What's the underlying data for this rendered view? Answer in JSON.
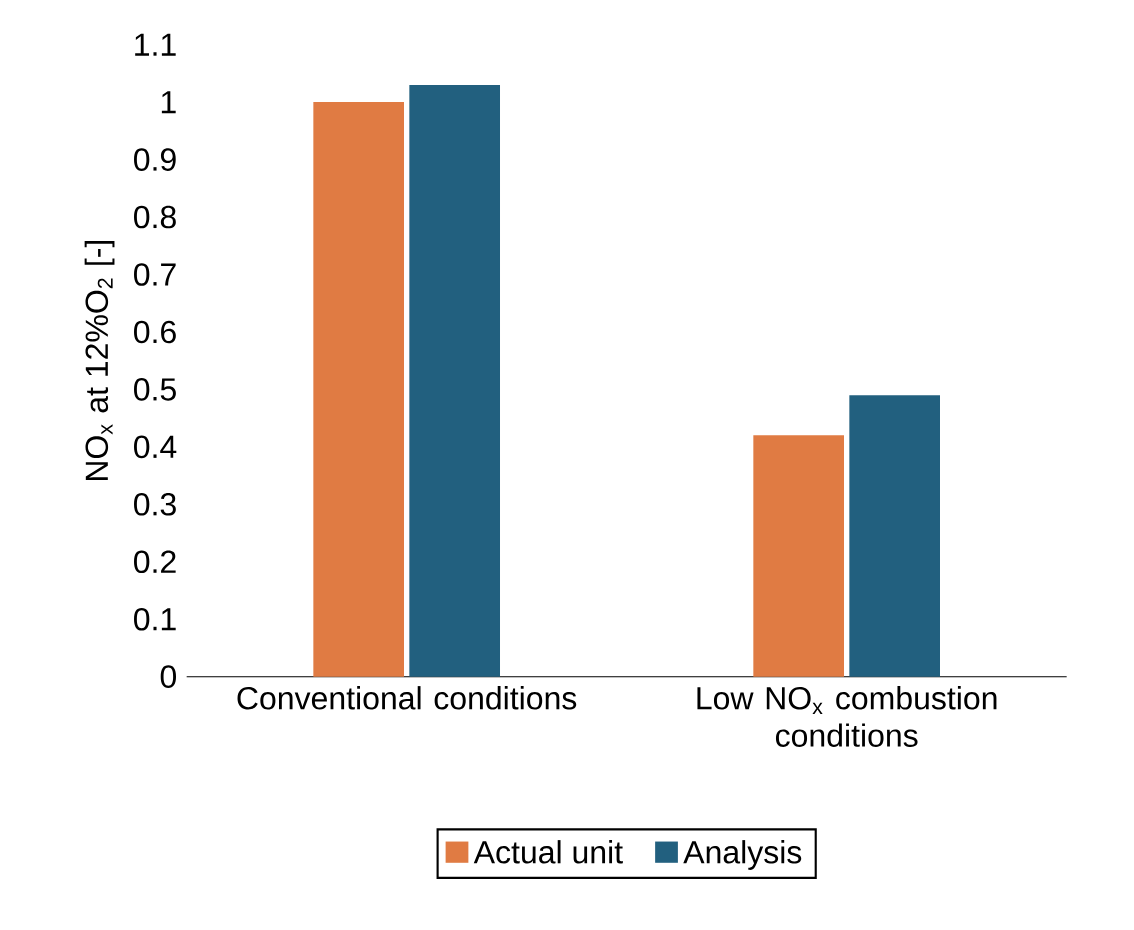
{
  "chart_data": {
    "type": "bar",
    "ylabel": "NO$_{x}$ at 12%O$_{2}$ [-]",
    "categories": [
      "Conventional conditions",
      "Low NO$_{x}$ combustion conditions"
    ],
    "series": [
      {
        "name": "Actual unit",
        "color": "#e07b43",
        "values": [
          1.0,
          0.42
        ]
      },
      {
        "name": "Analysis",
        "color": "#22607f",
        "values": [
          1.03,
          0.49
        ]
      }
    ],
    "ylim": [
      0,
      1.1
    ],
    "yticks": [
      0,
      0.1,
      0.2,
      0.3,
      0.4,
      0.5,
      0.6,
      0.7,
      0.8,
      0.9,
      1,
      1.1
    ],
    "grid": false,
    "legend": "bottom"
  }
}
